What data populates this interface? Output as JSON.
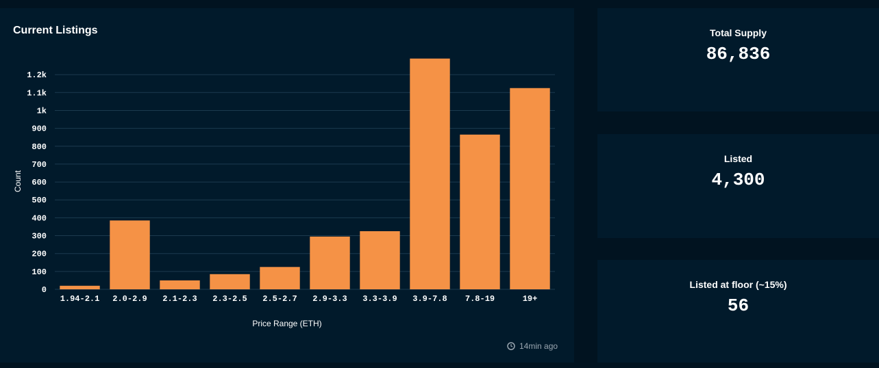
{
  "chart_data": {
    "type": "bar",
    "title": "Current Listings",
    "x_label": "Price Range (ETH)",
    "y_label": "Count",
    "categories": [
      "1.94-2.1",
      "2.0-2.9",
      "2.1-2.3",
      "2.3-2.5",
      "2.5-2.7",
      "2.9-3.3",
      "3.3-3.9",
      "3.9-7.8",
      "7.8-19",
      "19+"
    ],
    "values": [
      20,
      385,
      50,
      85,
      125,
      295,
      325,
      1290,
      865,
      1125
    ],
    "color": "#f59246",
    "ylim": [
      0,
      1300
    ],
    "yticks": [
      0,
      100,
      200,
      300,
      400,
      500,
      600,
      700,
      800,
      900,
      {
        "value": 1000,
        "label": "1k"
      },
      {
        "value": 1100,
        "label": "1.1k"
      },
      {
        "value": 1200,
        "label": "1.2k"
      }
    ],
    "grid": true
  },
  "updated": "14min ago",
  "cards": [
    {
      "label": "Total Supply",
      "value": "86,836"
    },
    {
      "label": "Listed",
      "value": "4,300"
    },
    {
      "label": "Listed at floor (~15%)",
      "value": "56"
    }
  ]
}
